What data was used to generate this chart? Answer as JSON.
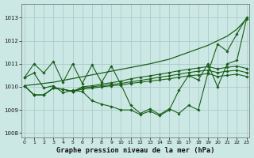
{
  "bg_color": "#cce8e4",
  "grid_color": "#aacccc",
  "line_color": "#1a5e1a",
  "title": "Graphe pression niveau de la mer (hPa)",
  "ylim": [
    1007.8,
    1013.6
  ],
  "xlim": [
    -0.3,
    23.3
  ],
  "yticks": [
    1008,
    1009,
    1010,
    1011,
    1012,
    1013
  ],
  "xticks": [
    0,
    1,
    2,
    3,
    4,
    5,
    6,
    7,
    8,
    9,
    10,
    11,
    12,
    13,
    14,
    15,
    16,
    17,
    18,
    19,
    20,
    21,
    22,
    23
  ],
  "series": [
    {
      "y": [
        1010.05,
        1010.1,
        1010.15,
        1010.2,
        1010.28,
        1010.36,
        1010.44,
        1010.52,
        1010.6,
        1010.68,
        1010.76,
        1010.84,
        1010.92,
        1011.0,
        1011.1,
        1011.2,
        1011.35,
        1011.5,
        1011.65,
        1011.8,
        1012.0,
        1012.2,
        1012.5,
        1012.95
      ],
      "marker": false,
      "lw": 0.9
    },
    {
      "y": [
        1010.4,
        1011.0,
        1010.6,
        1011.1,
        1010.2,
        1011.0,
        1010.15,
        1010.95,
        1010.2,
        1010.9,
        1010.1,
        1009.2,
        1008.85,
        1009.05,
        1008.8,
        1009.05,
        1008.85,
        1009.2,
        1009.0,
        1010.6,
        1011.85,
        1011.55,
        1012.3,
        1013.0
      ],
      "marker": true,
      "lw": 0.8
    },
    {
      "y": [
        1010.4,
        1010.6,
        1009.95,
        1010.05,
        1009.75,
        1009.85,
        1009.8,
        1009.4,
        1009.25,
        1009.15,
        1009.0,
        1009.0,
        1008.8,
        1008.95,
        1008.75,
        1009.0,
        1009.85,
        1010.5,
        1010.3,
        1011.0,
        1010.0,
        1011.0,
        1011.15,
        1012.95
      ],
      "marker": true,
      "lw": 0.8
    },
    {
      "y": [
        1010.05,
        1009.65,
        1009.65,
        1009.95,
        1009.9,
        1009.8,
        1009.9,
        1009.95,
        1010.0,
        1010.05,
        1010.08,
        1010.15,
        1010.2,
        1010.25,
        1010.3,
        1010.35,
        1010.42,
        1010.48,
        1010.52,
        1010.58,
        1010.45,
        1010.5,
        1010.55,
        1010.45
      ],
      "marker": true,
      "lw": 0.8
    },
    {
      "y": [
        1010.05,
        1009.65,
        1009.65,
        1009.95,
        1009.9,
        1009.8,
        1009.95,
        1010.0,
        1010.05,
        1010.1,
        1010.15,
        1010.22,
        1010.28,
        1010.35,
        1010.42,
        1010.48,
        1010.55,
        1010.62,
        1010.68,
        1010.72,
        1010.62,
        1010.68,
        1010.72,
        1010.62
      ],
      "marker": true,
      "lw": 0.8
    },
    {
      "y": [
        1010.05,
        1009.65,
        1009.65,
        1009.95,
        1009.9,
        1009.8,
        1010.0,
        1010.05,
        1010.12,
        1010.18,
        1010.25,
        1010.35,
        1010.42,
        1010.48,
        1010.55,
        1010.62,
        1010.7,
        1010.76,
        1010.82,
        1010.88,
        1010.78,
        1010.85,
        1010.9,
        1010.8
      ],
      "marker": true,
      "lw": 0.8
    }
  ]
}
